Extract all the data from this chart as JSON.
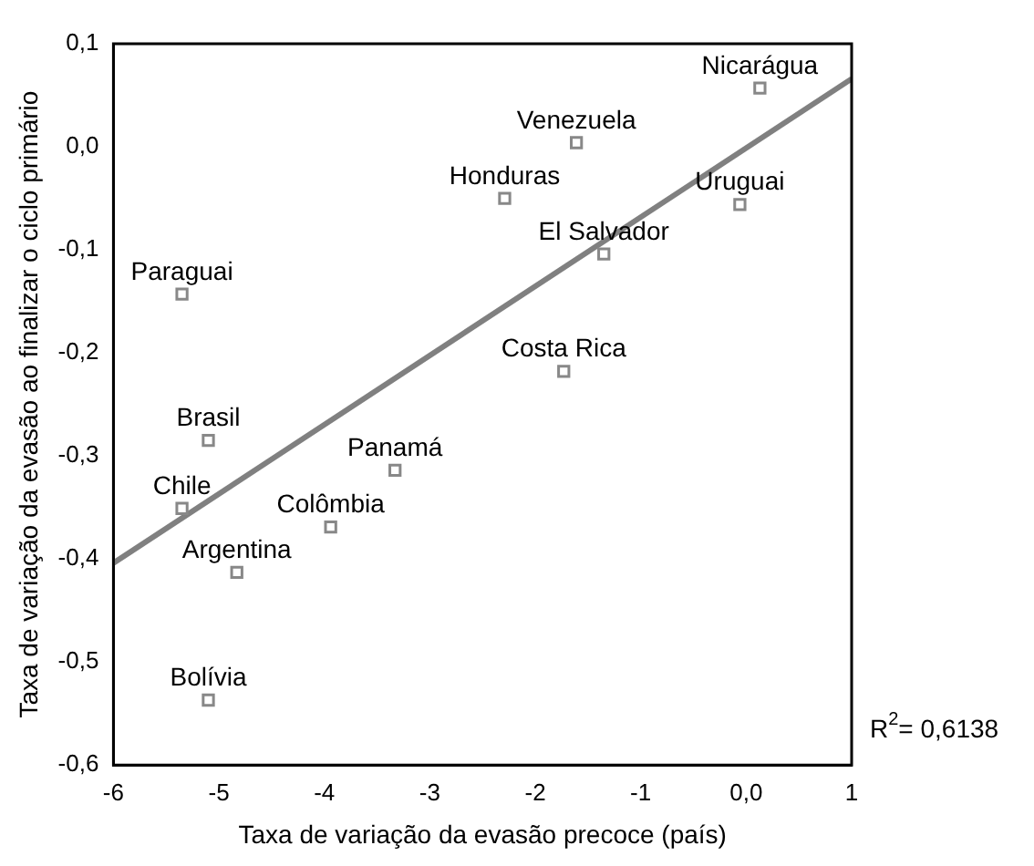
{
  "chart_data": {
    "type": "scatter",
    "xlabel": "Taxa de variação da evasão precoce (país)",
    "ylabel": "Taxa de variação da evasão ao finalizar o ciclo primário",
    "x": [
      0.13,
      -1.61,
      -2.29,
      -0.06,
      -1.35,
      -5.35,
      -1.73,
      -5.1,
      -3.33,
      -5.35,
      -3.94,
      -4.83,
      -5.1
    ],
    "series": [
      {
        "color": "#888888",
        "marker": "square",
        "values": [
          0.057,
          0.004,
          -0.05,
          -0.056,
          -0.104,
          -0.143,
          -0.218,
          -0.285,
          -0.314,
          -0.351,
          -0.369,
          -0.413,
          -0.537
        ]
      },
      {
        "type": "line",
        "marker": "none",
        "color": "#808080",
        "x": [
          -6,
          1
        ],
        "values": [
          -0.404,
          0.066
        ]
      }
    ],
    "xlim": [
      -6,
      1
    ],
    "xticks": [
      -6,
      -5,
      -4,
      -3,
      -2,
      -1,
      {
        "value": 0,
        "label": "0,0"
      },
      1
    ],
    "ylim": [
      -0.6,
      0.1
    ],
    "yticks": [
      {
        "value": -0.6,
        "label": "-0,6"
      },
      {
        "value": -0.5,
        "label": "-0,5"
      },
      {
        "value": -0.4,
        "label": "-0,4"
      },
      {
        "value": -0.3,
        "label": "-0,3"
      },
      {
        "value": -0.2,
        "label": "-0,2"
      },
      {
        "value": -0.1,
        "label": "-0,1"
      },
      {
        "value": 0,
        "label": "0,0"
      },
      {
        "value": 0.1,
        "label": "0,1"
      }
    ],
    "grid": false,
    "legend": false,
    "annotations": [
      {
        "text": "Nicarágua",
        "x": 0.13,
        "y": 0.057
      },
      {
        "text": "Venezuela",
        "x": -1.61,
        "y": 0.004
      },
      {
        "text": "Honduras",
        "x": -2.29,
        "y": -0.05
      },
      {
        "text": "Uruguai",
        "x": -0.06,
        "y": -0.056
      },
      {
        "text": "El Salvador",
        "x": -1.35,
        "y": -0.104
      },
      {
        "text": "Paraguai",
        "x": -5.35,
        "y": -0.143
      },
      {
        "text": "Costa Rica",
        "x": -1.73,
        "y": -0.218
      },
      {
        "text": "Brasil",
        "x": -5.1,
        "y": -0.285
      },
      {
        "text": "Panamá",
        "x": -3.33,
        "y": -0.314
      },
      {
        "text": "Chile",
        "x": -5.35,
        "y": -0.351
      },
      {
        "text": "Colômbia",
        "x": -3.94,
        "y": -0.369
      },
      {
        "text": "Argentina",
        "x": -4.83,
        "y": -0.413
      },
      {
        "text": "Bolívia",
        "x": -5.1,
        "y": -0.537
      },
      "R$^{2}$= 0,6138"
    ]
  }
}
